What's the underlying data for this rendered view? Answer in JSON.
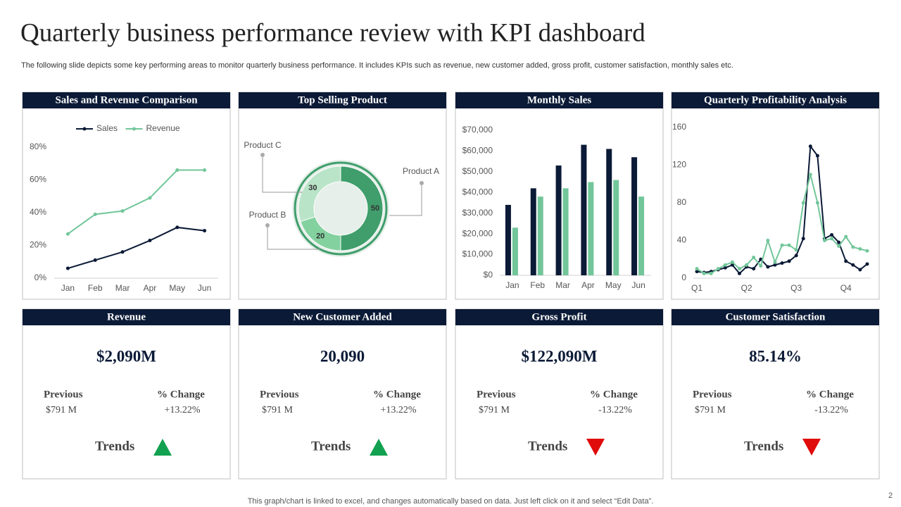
{
  "header": {
    "title": "Quarterly business performance review with KPI dashboard",
    "subtitle": "The following slide depicts some key performing areas to monitor quarterly business performance. It includes KPIs such as revenue, new customer added, gross profit, customer satisfaction, monthly sales etc."
  },
  "chart_data": [
    {
      "type": "line",
      "title": "Sales and Revenue Comparison",
      "categories": [
        "Jan",
        "Feb",
        "Mar",
        "Apr",
        "May",
        "Jun"
      ],
      "series": [
        {
          "name": "Sales",
          "color": "#0b1a36",
          "values": [
            6,
            11,
            16,
            23,
            31,
            29
          ]
        },
        {
          "name": "Revenue",
          "color": "#72c69a",
          "values": [
            27,
            39,
            41,
            49,
            66,
            66
          ]
        }
      ],
      "ylim": [
        0,
        80
      ],
      "yticks": [
        {
          "value": 0,
          "label": "0%"
        },
        {
          "value": 20,
          "label": "20%"
        },
        {
          "value": 40,
          "label": "40%"
        },
        {
          "value": 60,
          "label": "60%"
        },
        {
          "value": 80,
          "label": "80%"
        }
      ],
      "grid": false,
      "legend": "top"
    },
    {
      "type": "doughnut",
      "title": "Top Selling Product",
      "categories": [
        "Product A",
        "Product B",
        "Product C"
      ],
      "values": [
        50,
        20,
        30
      ],
      "colors": [
        "#3f9e6b",
        "#84d1a0",
        "#b9e4c8"
      ]
    },
    {
      "type": "bar",
      "title": "Monthly Sales",
      "categories": [
        "Jan",
        "Feb",
        "Mar",
        "Apr",
        "May",
        "Jun"
      ],
      "series": [
        {
          "color": "#0b1a36",
          "values": [
            34000,
            42000,
            53000,
            63000,
            61000,
            57000
          ]
        },
        {
          "color": "#72c69a",
          "values": [
            23000,
            38000,
            42000,
            45000,
            46000,
            38000
          ]
        }
      ],
      "ylim": [
        0,
        70000
      ],
      "yticks": [
        {
          "value": 0,
          "label": "$0"
        },
        {
          "value": 10000,
          "label": "$10,000"
        },
        {
          "value": 20000,
          "label": "$20,000"
        },
        {
          "value": 30000,
          "label": "$30,000"
        },
        {
          "value": 40000,
          "label": "$40,000"
        },
        {
          "value": 50000,
          "label": "$50,000"
        },
        {
          "value": 60000,
          "label": "$60,000"
        },
        {
          "value": 70000,
          "label": "$70,000"
        }
      ],
      "grid": false
    },
    {
      "type": "line",
      "title": "Quarterly Profitability Analysis",
      "categories": [
        "Q1",
        null,
        null,
        null,
        null,
        null,
        null,
        "Q2",
        null,
        null,
        null,
        null,
        null,
        null,
        "Q3",
        null,
        null,
        null,
        null,
        null,
        null,
        "Q4",
        null,
        null,
        null
      ],
      "series": [
        {
          "color": "#0b1a36",
          "values": [
            7,
            6,
            7,
            9,
            11,
            14,
            5,
            12,
            10,
            20,
            12,
            14,
            16,
            18,
            24,
            42,
            140,
            130,
            42,
            46,
            38,
            18,
            14,
            9,
            15
          ]
        },
        {
          "color": "#72c69a",
          "values": [
            10,
            5,
            5,
            10,
            14,
            17,
            10,
            14,
            22,
            13,
            40,
            17,
            35,
            35,
            30,
            80,
            110,
            80,
            40,
            42,
            34,
            44,
            33,
            31,
            29
          ]
        }
      ],
      "ylim": [
        0,
        160
      ],
      "yticks": [
        0,
        40,
        80,
        120,
        160
      ],
      "grid": false
    }
  ],
  "kpis": [
    {
      "title": "Revenue",
      "value": "$2,090M",
      "previous_label": "Previous",
      "previous": "$791 M",
      "change_label": "% Change",
      "change": "+13.22%",
      "trend_label": "Trends",
      "trend": "up"
    },
    {
      "title": "New Customer Added",
      "value": "20,090",
      "previous_label": "Previous",
      "previous": "$791 M",
      "change_label": "% Change",
      "change": "+13.22%",
      "trend_label": "Trends",
      "trend": "up"
    },
    {
      "title": "Gross Profit",
      "value": "$122,090M",
      "previous_label": "Previous",
      "previous": "$791 M",
      "change_label": "% Change",
      "change": "-13.22%",
      "trend_label": "Trends",
      "trend": "down"
    },
    {
      "title": "Customer Satisfaction",
      "value": "85.14%",
      "previous_label": "Previous",
      "previous": "$791 M",
      "change_label": "% Change",
      "change": "-13.22%",
      "trend_label": "Trends",
      "trend": "down"
    }
  ],
  "footer": "This graph/chart is linked to excel, and changes automatically based on data. Just left click on it and select “Edit Data”.",
  "page_number": 2
}
